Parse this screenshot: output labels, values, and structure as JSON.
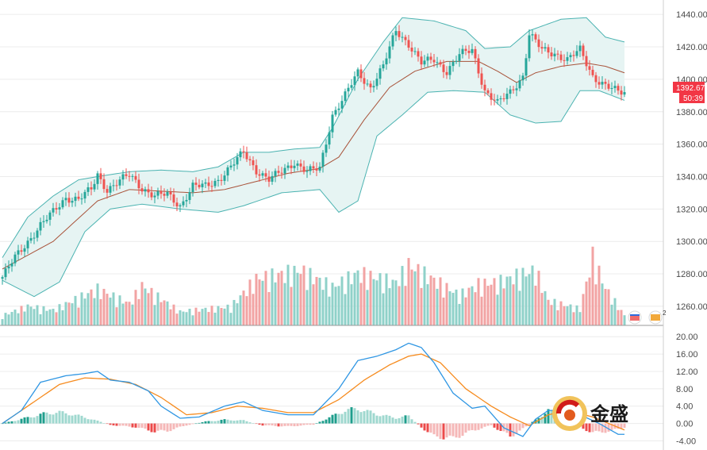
{
  "chart_data": [
    {
      "type": "candlestick",
      "title": "",
      "ylim": [
        1258,
        1444
      ],
      "yticks": [
        "1440.00",
        "1420.00",
        "1400.00",
        "1380.00",
        "1360.00",
        "1340.00",
        "1320.00",
        "1300.00",
        "1280.00",
        "1260.00"
      ],
      "last_price": "1392.67",
      "countdown": "50:39",
      "overlays": [
        "Bollinger Bands (upper, middle, lower)",
        "Volume histogram"
      ],
      "anchors": {
        "close": [
          [
            0,
            1278
          ],
          [
            4,
            1290
          ],
          [
            8,
            1300
          ],
          [
            12,
            1310
          ],
          [
            16,
            1318
          ],
          [
            20,
            1327
          ],
          [
            24,
            1326
          ],
          [
            28,
            1332
          ],
          [
            30,
            1341
          ],
          [
            33,
            1332
          ],
          [
            36,
            1336
          ],
          [
            40,
            1341
          ],
          [
            44,
            1333
          ],
          [
            48,
            1328
          ],
          [
            52,
            1329
          ],
          [
            56,
            1322
          ],
          [
            60,
            1334
          ],
          [
            64,
            1334
          ],
          [
            68,
            1338
          ],
          [
            72,
            1346
          ],
          [
            76,
            1355
          ],
          [
            80,
            1344
          ],
          [
            84,
            1338
          ],
          [
            88,
            1343
          ],
          [
            92,
            1349
          ],
          [
            96,
            1343
          ],
          [
            100,
            1345
          ],
          [
            104,
            1378
          ],
          [
            108,
            1390
          ],
          [
            112,
            1404
          ],
          [
            116,
            1395
          ],
          [
            120,
            1408
          ],
          [
            124,
            1430
          ],
          [
            128,
            1422
          ],
          [
            132,
            1410
          ],
          [
            136,
            1412
          ],
          [
            140,
            1405
          ],
          [
            144,
            1415
          ],
          [
            148,
            1418
          ],
          [
            152,
            1393
          ],
          [
            156,
            1385
          ],
          [
            160,
            1392
          ],
          [
            164,
            1402
          ],
          [
            166,
            1428
          ],
          [
            170,
            1418
          ],
          [
            174,
            1416
          ],
          [
            178,
            1412
          ],
          [
            182,
            1418
          ],
          [
            186,
            1402
          ],
          [
            190,
            1396
          ],
          [
            194,
            1392
          ]
        ],
        "upper": [
          [
            0,
            1290
          ],
          [
            8,
            1315
          ],
          [
            16,
            1328
          ],
          [
            24,
            1338
          ],
          [
            30,
            1340
          ],
          [
            40,
            1343
          ],
          [
            50,
            1344
          ],
          [
            60,
            1343
          ],
          [
            68,
            1346
          ],
          [
            76,
            1355
          ],
          [
            84,
            1355
          ],
          [
            92,
            1357
          ],
          [
            100,
            1358
          ],
          [
            104,
            1370
          ],
          [
            112,
            1400
          ],
          [
            120,
            1423
          ],
          [
            126,
            1438
          ],
          [
            136,
            1436
          ],
          [
            146,
            1430
          ],
          [
            152,
            1419
          ],
          [
            160,
            1420
          ],
          [
            166,
            1430
          ],
          [
            176,
            1437
          ],
          [
            184,
            1438
          ],
          [
            190,
            1426
          ],
          [
            196,
            1423
          ]
        ],
        "mid": [
          [
            0,
            1283
          ],
          [
            16,
            1300
          ],
          [
            30,
            1325
          ],
          [
            40,
            1332
          ],
          [
            50,
            1331
          ],
          [
            60,
            1330
          ],
          [
            70,
            1332
          ],
          [
            80,
            1337
          ],
          [
            90,
            1342
          ],
          [
            100,
            1345
          ],
          [
            106,
            1352
          ],
          [
            114,
            1375
          ],
          [
            122,
            1395
          ],
          [
            130,
            1405
          ],
          [
            140,
            1411
          ],
          [
            150,
            1411
          ],
          [
            156,
            1405
          ],
          [
            162,
            1398
          ],
          [
            168,
            1404
          ],
          [
            176,
            1408
          ],
          [
            184,
            1410
          ],
          [
            190,
            1408
          ],
          [
            196,
            1404
          ]
        ],
        "lower": [
          [
            0,
            1276
          ],
          [
            10,
            1266
          ],
          [
            18,
            1275
          ],
          [
            26,
            1306
          ],
          [
            34,
            1320
          ],
          [
            44,
            1323
          ],
          [
            56,
            1320
          ],
          [
            68,
            1318
          ],
          [
            76,
            1322
          ],
          [
            88,
            1330
          ],
          [
            100,
            1332
          ],
          [
            106,
            1318
          ],
          [
            112,
            1325
          ],
          [
            118,
            1365
          ],
          [
            126,
            1378
          ],
          [
            134,
            1392
          ],
          [
            142,
            1393
          ],
          [
            152,
            1392
          ],
          [
            160,
            1378
          ],
          [
            168,
            1373
          ],
          [
            176,
            1374
          ],
          [
            182,
            1393
          ],
          [
            188,
            1393
          ],
          [
            196,
            1387
          ]
        ],
        "volume": [
          [
            0,
            0.18
          ],
          [
            8,
            0.35
          ],
          [
            16,
            0.28
          ],
          [
            24,
            0.5
          ],
          [
            30,
            0.66
          ],
          [
            40,
            0.4
          ],
          [
            44,
            0.72
          ],
          [
            56,
            0.25
          ],
          [
            64,
            0.3
          ],
          [
            72,
            0.34
          ],
          [
            80,
            0.85
          ],
          [
            94,
            1.0
          ],
          [
            104,
            0.7
          ],
          [
            112,
            0.95
          ],
          [
            124,
            0.78
          ],
          [
            128,
            1.1
          ],
          [
            134,
            0.9
          ],
          [
            144,
            0.55
          ],
          [
            150,
            0.75
          ],
          [
            156,
            0.78
          ],
          [
            162,
            0.9
          ],
          [
            168,
            1.0
          ],
          [
            172,
            0.45
          ],
          [
            182,
            0.3
          ],
          [
            186,
            1.25
          ],
          [
            190,
            0.68
          ],
          [
            196,
            0.18
          ]
        ]
      },
      "chart_area": "1 to 1 candles, last candle includes price badge"
    },
    {
      "type": "line+histogram",
      "title": "",
      "ylim": [
        -5.2,
        21.5
      ],
      "yticks": [
        "20.00",
        "16.00",
        "12.00",
        "8.00",
        "4.00",
        "0.00",
        "-4.00"
      ],
      "series_names": [],
      "anchors": {
        "macd": [
          [
            0,
            0
          ],
          [
            6,
            3
          ],
          [
            12,
            9.5
          ],
          [
            20,
            11
          ],
          [
            26,
            11.5
          ],
          [
            30,
            12
          ],
          [
            34,
            10
          ],
          [
            40,
            9.5
          ],
          [
            46,
            7.5
          ],
          [
            50,
            4
          ],
          [
            56,
            1.2
          ],
          [
            62,
            1.5
          ],
          [
            70,
            4
          ],
          [
            76,
            5
          ],
          [
            82,
            3
          ],
          [
            90,
            2
          ],
          [
            98,
            2
          ],
          [
            106,
            8
          ],
          [
            112,
            14.5
          ],
          [
            118,
            15.5
          ],
          [
            124,
            17
          ],
          [
            128,
            18.5
          ],
          [
            132,
            17.5
          ],
          [
            136,
            14
          ],
          [
            142,
            7
          ],
          [
            148,
            3.5
          ],
          [
            152,
            4
          ],
          [
            158,
            -1
          ],
          [
            164,
            -3
          ],
          [
            168,
            1
          ],
          [
            172,
            3
          ],
          [
            176,
            3
          ],
          [
            182,
            2
          ],
          [
            188,
            0
          ],
          [
            194,
            -2.5
          ]
        ],
        "signal": [
          [
            0,
            0
          ],
          [
            10,
            5
          ],
          [
            18,
            9
          ],
          [
            26,
            10.5
          ],
          [
            34,
            10.2
          ],
          [
            42,
            9
          ],
          [
            50,
            6
          ],
          [
            58,
            2
          ],
          [
            66,
            2.5
          ],
          [
            74,
            4
          ],
          [
            82,
            3.5
          ],
          [
            90,
            2.5
          ],
          [
            98,
            2.5
          ],
          [
            106,
            5.5
          ],
          [
            114,
            10
          ],
          [
            122,
            13.5
          ],
          [
            128,
            15.5
          ],
          [
            132,
            16
          ],
          [
            138,
            14
          ],
          [
            146,
            8
          ],
          [
            154,
            4
          ],
          [
            160,
            1.5
          ],
          [
            166,
            -0.5
          ],
          [
            172,
            2
          ],
          [
            178,
            3
          ],
          [
            186,
            1.5
          ],
          [
            196,
            -1.5
          ]
        ],
        "hist": [
          [
            0,
            0
          ],
          [
            6,
            1.2
          ],
          [
            10,
            2
          ],
          [
            14,
            2.8
          ],
          [
            18,
            3
          ],
          [
            22,
            2.5
          ],
          [
            28,
            1.2
          ],
          [
            34,
            -0.4
          ],
          [
            42,
            -1
          ],
          [
            48,
            -2.2
          ],
          [
            52,
            -2
          ],
          [
            58,
            -0.5
          ],
          [
            64,
            0.5
          ],
          [
            70,
            1
          ],
          [
            76,
            0.8
          ],
          [
            82,
            -0.5
          ],
          [
            90,
            -0.8
          ],
          [
            98,
            -0.3
          ],
          [
            104,
            2
          ],
          [
            108,
            3.5
          ],
          [
            112,
            4
          ],
          [
            118,
            2.5
          ],
          [
            124,
            1.5
          ],
          [
            128,
            2
          ],
          [
            132,
            -1
          ],
          [
            136,
            -3.5
          ],
          [
            142,
            -4
          ],
          [
            148,
            -2
          ],
          [
            154,
            -0.5
          ],
          [
            160,
            -3.5
          ],
          [
            164,
            -1.5
          ],
          [
            168,
            1
          ],
          [
            172,
            3.5
          ],
          [
            176,
            1.5
          ],
          [
            182,
            -1
          ],
          [
            186,
            -2.5
          ],
          [
            192,
            -2
          ],
          [
            196,
            -1
          ]
        ]
      }
    }
  ],
  "watermark": {
    "text": "金盛",
    "icon": "gold-swirl-logo"
  },
  "badges": {
    "price_color": "#f23645",
    "badge_icons": [
      "calendar-event-icon",
      "currency-event-icon"
    ]
  },
  "colors": {
    "up": "#26a69a",
    "down": "#ef5350",
    "band_fill": "#e6f4f3",
    "band_line": "#4bb3b1",
    "mid_line": "#a8533a",
    "macd": "#2f96e3",
    "signal": "#f68b1e",
    "grid": "#ececec"
  }
}
